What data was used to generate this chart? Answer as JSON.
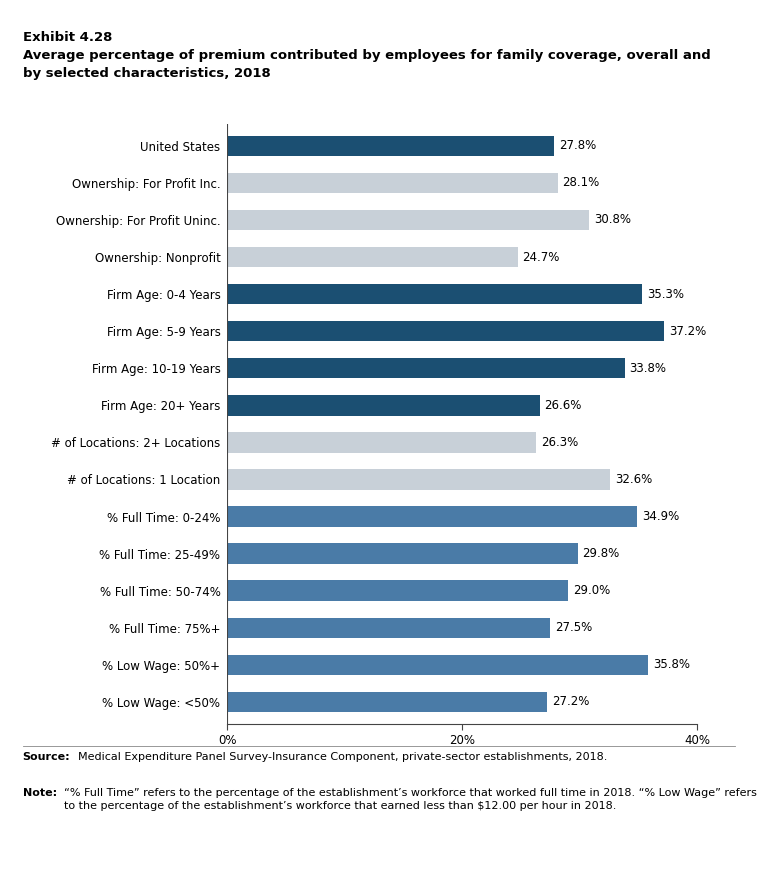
{
  "title_line1": "Exhibit 4.28",
  "title_line2": "Average percentage of premium contributed by employees for family coverage, overall and\nby selected characteristics, 2018",
  "categories": [
    "United States",
    "Ownership: For Profit Inc.",
    "Ownership: For Profit Uninc.",
    "Ownership: Nonprofit",
    "Firm Age: 0-4 Years",
    "Firm Age: 5-9 Years",
    "Firm Age: 10-19 Years",
    "Firm Age: 20+ Years",
    "# of Locations: 2+ Locations",
    "# of Locations: 1 Location",
    "% Full Time: 0-24%",
    "% Full Time: 25-49%",
    "% Full Time: 50-74%",
    "% Full Time: 75%+",
    "% Low Wage: 50%+",
    "% Low Wage: <50%"
  ],
  "values": [
    27.8,
    28.1,
    30.8,
    24.7,
    35.3,
    37.2,
    33.8,
    26.6,
    26.3,
    32.6,
    34.9,
    29.8,
    29.0,
    27.5,
    35.8,
    27.2
  ],
  "colors": [
    "#1B4F72",
    "#C8D0D8",
    "#C8D0D8",
    "#C8D0D8",
    "#1B4F72",
    "#1B4F72",
    "#1B4F72",
    "#1B4F72",
    "#C8D0D8",
    "#C8D0D8",
    "#4A7BA7",
    "#4A7BA7",
    "#4A7BA7",
    "#4A7BA7",
    "#4A7BA7",
    "#4A7BA7"
  ],
  "xlim": [
    0,
    40
  ],
  "xticks": [
    0,
    20,
    40
  ],
  "xticklabels": [
    "0%",
    "20%",
    "40%"
  ],
  "source_bold": "Source:",
  "source_rest": " Medical Expenditure Panel Survey-Insurance Component, private-sector establishments, 2018.",
  "note_bold": "Note:",
  "note_rest": " “% Full Time” refers to the percentage of the establishment’s workforce that worked full time in 2018. “% Low Wage” refers to the percentage of the establishment’s workforce that earned less than $12.00 per hour in 2018.",
  "bar_height": 0.55,
  "label_fontsize": 8.5,
  "tick_fontsize": 8.5,
  "value_fontsize": 8.5
}
